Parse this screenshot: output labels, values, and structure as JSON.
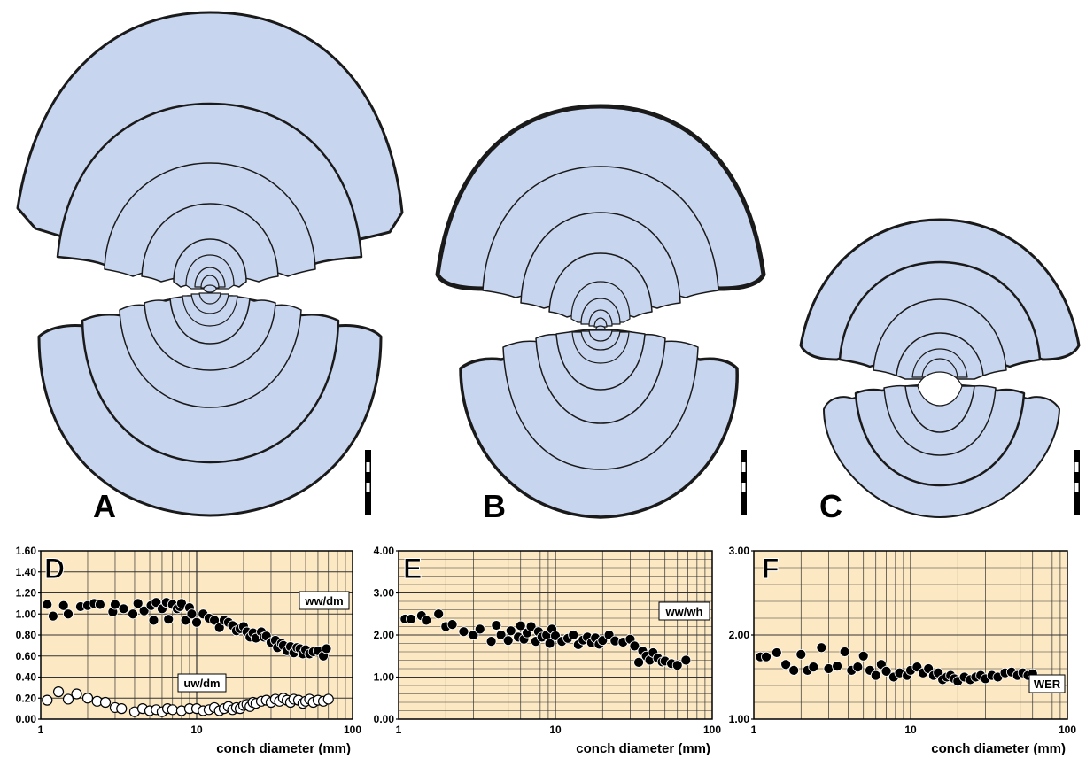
{
  "panels": {
    "A": {
      "label": "A"
    },
    "B": {
      "label": "B"
    },
    "C": {
      "label": "C"
    }
  },
  "colors": {
    "whorl_fill": "#c7d5ef",
    "outline": "#1a1a1a",
    "plot_bg": "#fce9c3",
    "grid": "#333333"
  },
  "chart_data": [
    {
      "panel": "D",
      "type": "scatter",
      "x_scale": "log",
      "xlim": [
        1,
        100
      ],
      "xticks": [
        "1",
        "10",
        "100"
      ],
      "ylim": [
        0,
        1.6
      ],
      "yticks": [
        "0.00",
        "0.20",
        "0.40",
        "0.60",
        "0.80",
        "1.00",
        "1.20",
        "1.40",
        "1.60"
      ],
      "xlabel": "conch diameter (mm)",
      "grid": true,
      "series": [
        {
          "name": "ww/dm",
          "marker": "filled",
          "x": [
            1.1,
            1.2,
            1.4,
            1.5,
            1.8,
            2.0,
            2.2,
            2.4,
            2.9,
            3.0,
            3.4,
            3.9,
            4.2,
            4.6,
            5.1,
            5.3,
            5.5,
            6.0,
            6.4,
            6.6,
            7.0,
            7.5,
            7.8,
            8.0,
            8.5,
            9.0,
            9.3,
            10.0,
            11,
            12,
            13,
            14,
            15,
            16,
            17,
            18,
            19,
            20,
            21,
            22,
            23,
            24,
            26,
            27,
            28,
            30,
            32,
            33,
            35,
            36,
            38,
            40,
            42,
            44,
            46,
            48,
            50,
            53,
            56,
            60,
            65,
            68
          ],
          "y": [
            1.09,
            0.98,
            1.08,
            1.0,
            1.07,
            1.08,
            1.1,
            1.09,
            1.02,
            1.09,
            1.05,
            1.0,
            1.1,
            1.03,
            1.08,
            0.94,
            1.11,
            1.05,
            1.11,
            0.95,
            1.09,
            1.05,
            1.07,
            1.1,
            0.94,
            1.06,
            1.0,
            0.92,
            1.0,
            0.96,
            0.94,
            0.87,
            0.94,
            0.92,
            0.89,
            0.84,
            0.86,
            0.88,
            0.83,
            0.78,
            0.82,
            0.77,
            0.83,
            0.78,
            0.79,
            0.73,
            0.75,
            0.68,
            0.72,
            0.7,
            0.65,
            0.69,
            0.63,
            0.68,
            0.67,
            0.62,
            0.66,
            0.62,
            0.64,
            0.65,
            0.6,
            0.67
          ]
        },
        {
          "name": "uw/dm",
          "marker": "open",
          "x": [
            1.1,
            1.3,
            1.5,
            1.7,
            2.0,
            2.3,
            2.6,
            3.0,
            3.3,
            4.0,
            4.5,
            5.0,
            5.5,
            6.0,
            6.5,
            7.0,
            8.0,
            9.0,
            10,
            11,
            12,
            13,
            14,
            15,
            16,
            17,
            18,
            19,
            20,
            21,
            22,
            23,
            24,
            26,
            28,
            30,
            32,
            34,
            36,
            38,
            40,
            42,
            45,
            48,
            50,
            53,
            56,
            60,
            65,
            70
          ],
          "y": [
            0.18,
            0.26,
            0.19,
            0.24,
            0.2,
            0.17,
            0.16,
            0.11,
            0.1,
            0.07,
            0.1,
            0.08,
            0.09,
            0.07,
            0.1,
            0.09,
            0.08,
            0.1,
            0.1,
            0.08,
            0.09,
            0.11,
            0.08,
            0.1,
            0.12,
            0.09,
            0.11,
            0.1,
            0.13,
            0.14,
            0.12,
            0.16,
            0.15,
            0.17,
            0.18,
            0.16,
            0.19,
            0.17,
            0.2,
            0.18,
            0.16,
            0.19,
            0.18,
            0.15,
            0.17,
            0.19,
            0.16,
            0.18,
            0.17,
            0.19
          ]
        }
      ]
    },
    {
      "panel": "E",
      "type": "scatter",
      "x_scale": "log",
      "xlim": [
        1,
        100
      ],
      "xticks": [
        "1",
        "10",
        "100"
      ],
      "ylim": [
        0,
        4
      ],
      "yticks": [
        "0.00",
        "1.00",
        "2.00",
        "3.00",
        "4.00"
      ],
      "xlabel": "conch diameter (mm)",
      "grid": true,
      "series": [
        {
          "name": "ww/wh",
          "marker": "filled",
          "x": [
            1.1,
            1.2,
            1.4,
            1.5,
            1.8,
            2.0,
            2.2,
            2.6,
            3.0,
            3.3,
            3.9,
            4.2,
            4.5,
            5.0,
            5.2,
            5.8,
            6.0,
            6.3,
            6.6,
            7.0,
            7.5,
            7.8,
            8.2,
            8.8,
            9.2,
            9.5,
            10,
            11,
            12,
            13,
            14,
            15,
            16,
            17,
            18,
            19,
            20,
            22,
            24,
            27,
            30,
            32,
            34,
            36,
            38,
            40,
            42,
            45,
            48,
            50,
            55,
            60,
            68
          ],
          "y": [
            2.38,
            2.38,
            2.46,
            2.35,
            2.5,
            2.2,
            2.25,
            2.08,
            2.0,
            2.14,
            1.85,
            2.23,
            2.0,
            1.87,
            2.1,
            1.95,
            2.22,
            1.9,
            2.05,
            2.2,
            1.85,
            2.08,
            1.95,
            2.0,
            1.8,
            2.14,
            1.98,
            1.85,
            1.92,
            2.0,
            1.77,
            1.88,
            1.95,
            1.82,
            1.93,
            1.78,
            1.87,
            2.0,
            1.86,
            1.83,
            1.9,
            1.74,
            1.35,
            1.62,
            1.5,
            1.4,
            1.58,
            1.45,
            1.36,
            1.38,
            1.32,
            1.28,
            1.4
          ]
        }
      ]
    },
    {
      "panel": "F",
      "type": "scatter",
      "x_scale": "log",
      "xlim": [
        1,
        100
      ],
      "xticks": [
        "1",
        "10",
        "100"
      ],
      "ylim": [
        1,
        3
      ],
      "yticks": [
        "1.00",
        "2.00",
        "3.00"
      ],
      "xlabel": "conch diameter (mm)",
      "grid": true,
      "series": [
        {
          "name": "WER",
          "marker": "filled",
          "x": [
            1.1,
            1.2,
            1.4,
            1.6,
            1.8,
            2.0,
            2.2,
            2.4,
            2.7,
            3.0,
            3.4,
            3.8,
            4.2,
            4.6,
            5.0,
            5.5,
            6.0,
            6.5,
            7.0,
            7.8,
            8.5,
            9.5,
            10,
            11,
            12,
            13,
            14,
            15,
            16,
            17,
            18,
            19,
            20,
            22,
            24,
            26,
            28,
            30,
            33,
            36,
            40,
            44,
            48,
            52,
            56,
            60
          ],
          "y": [
            1.74,
            1.74,
            1.79,
            1.65,
            1.58,
            1.77,
            1.58,
            1.62,
            1.85,
            1.6,
            1.63,
            1.8,
            1.58,
            1.62,
            1.75,
            1.58,
            1.52,
            1.65,
            1.57,
            1.5,
            1.55,
            1.52,
            1.58,
            1.62,
            1.55,
            1.6,
            1.52,
            1.55,
            1.47,
            1.5,
            1.52,
            1.48,
            1.45,
            1.5,
            1.47,
            1.5,
            1.52,
            1.48,
            1.52,
            1.5,
            1.55,
            1.56,
            1.52,
            1.55,
            1.52,
            1.54
          ]
        }
      ]
    }
  ]
}
